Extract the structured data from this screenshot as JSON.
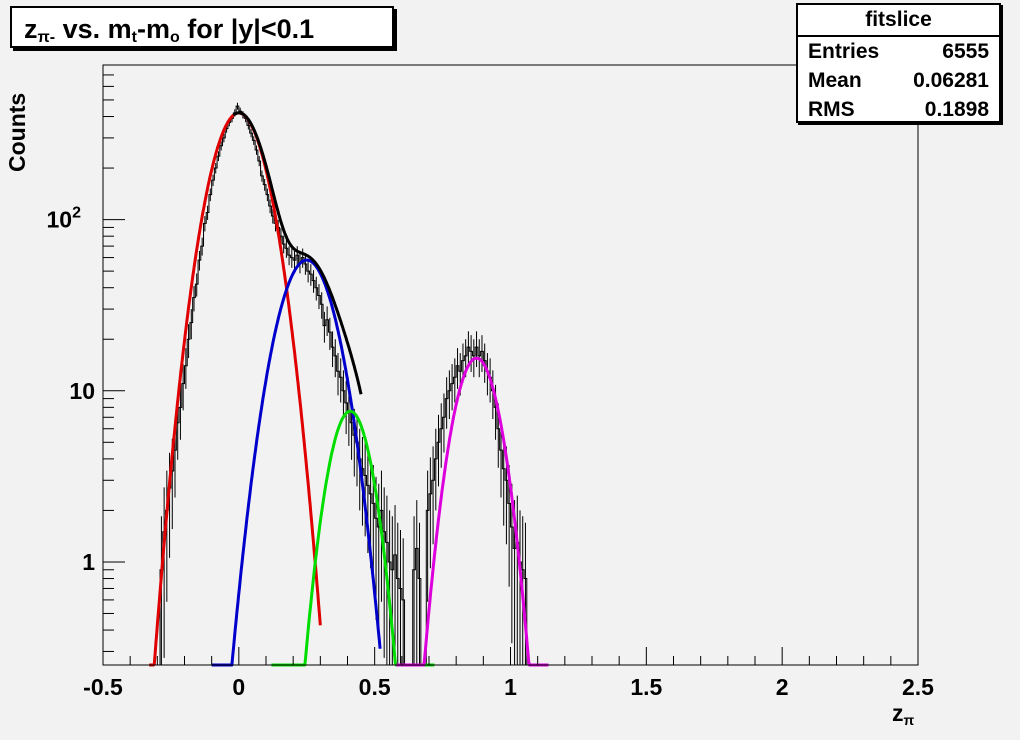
{
  "title": {
    "main": "z",
    "sub": "π-",
    "rest": " vs. m",
    "sub2": "t",
    "rest2": "-m",
    "sub3": "o",
    "rest3": " for |y|<0.1"
  },
  "stats": {
    "title": "fitslice",
    "rows": [
      {
        "label": "Entries",
        "value": "6555"
      },
      {
        "label": "Mean",
        "value": "0.06281"
      },
      {
        "label": "RMS",
        "value": "0.1898"
      }
    ]
  },
  "chart_data": {
    "type": "line",
    "ylabel": "Counts",
    "xlabel_main": "z",
    "xlabel_sub": "π",
    "xlim": [
      -0.5,
      2.5
    ],
    "ylim": [
      0.25,
      800
    ],
    "yscale": "log",
    "x_ticks": [
      "-0.5",
      "0",
      "0.5",
      "1",
      "1.5",
      "2",
      "2.5"
    ],
    "x_tick_values": [
      -0.5,
      0,
      0.5,
      1,
      1.5,
      2,
      2.5
    ],
    "y_ticks": [
      {
        "value": 1,
        "label": "1"
      },
      {
        "value": 10,
        "label": "10"
      },
      {
        "value": 100,
        "label": "10",
        "exp": "2"
      }
    ],
    "series": [
      {
        "kind": "gauss",
        "color": "#e00000",
        "amp": 420,
        "mean": 0.0,
        "sigma": 0.0808,
        "range": [
          -0.33,
          0.3
        ]
      },
      {
        "kind": "gauss",
        "color": "#0000cc",
        "amp": 58,
        "mean": 0.25,
        "sigma": 0.0835,
        "range": [
          -0.1,
          0.52
        ]
      },
      {
        "kind": "gauss",
        "color": "#00dd00",
        "amp": 7.6,
        "mean": 0.41,
        "sigma": 0.0638,
        "range": [
          0.12,
          0.72
        ]
      },
      {
        "kind": "gauss",
        "color": "#dd00dd",
        "amp": 15.5,
        "mean": 0.875,
        "sigma": 0.0672,
        "range": [
          0.58,
          1.14
        ]
      },
      {
        "kind": "sum",
        "color": "#000000",
        "range": [
          -0.02,
          0.45
        ]
      }
    ],
    "histogram": {
      "color": "#000000",
      "bin_width": 0.01,
      "bins": [
        {
          "x": -0.285,
          "y": 0.9
        },
        {
          "x": -0.275,
          "y": 1.5
        },
        {
          "x": -0.265,
          "y": 2.0
        },
        {
          "x": -0.255,
          "y": 2.7
        },
        {
          "x": -0.245,
          "y": 3.4
        },
        {
          "x": -0.235,
          "y": 4.5
        },
        {
          "x": -0.225,
          "y": 6.5
        },
        {
          "x": -0.215,
          "y": 8.0
        },
        {
          "x": -0.205,
          "y": 11
        },
        {
          "x": -0.195,
          "y": 14
        },
        {
          "x": -0.185,
          "y": 20
        },
        {
          "x": -0.175,
          "y": 25
        },
        {
          "x": -0.165,
          "y": 35
        },
        {
          "x": -0.155,
          "y": 42
        },
        {
          "x": -0.145,
          "y": 58
        },
        {
          "x": -0.135,
          "y": 70
        },
        {
          "x": -0.125,
          "y": 95
        },
        {
          "x": -0.115,
          "y": 110
        },
        {
          "x": -0.105,
          "y": 140
        },
        {
          "x": -0.095,
          "y": 170
        },
        {
          "x": -0.085,
          "y": 200
        },
        {
          "x": -0.075,
          "y": 235
        },
        {
          "x": -0.065,
          "y": 270
        },
        {
          "x": -0.055,
          "y": 300
        },
        {
          "x": -0.045,
          "y": 340
        },
        {
          "x": -0.035,
          "y": 370
        },
        {
          "x": -0.025,
          "y": 390
        },
        {
          "x": -0.015,
          "y": 420
        },
        {
          "x": -0.005,
          "y": 460
        },
        {
          "x": 0.005,
          "y": 430
        },
        {
          "x": 0.015,
          "y": 410
        },
        {
          "x": 0.025,
          "y": 390
        },
        {
          "x": 0.035,
          "y": 355
        },
        {
          "x": 0.045,
          "y": 320
        },
        {
          "x": 0.055,
          "y": 290
        },
        {
          "x": 0.065,
          "y": 255
        },
        {
          "x": 0.075,
          "y": 220
        },
        {
          "x": 0.085,
          "y": 180
        },
        {
          "x": 0.095,
          "y": 160
        },
        {
          "x": 0.105,
          "y": 140
        },
        {
          "x": 0.115,
          "y": 120
        },
        {
          "x": 0.125,
          "y": 105
        },
        {
          "x": 0.135,
          "y": 95
        },
        {
          "x": 0.145,
          "y": 90
        },
        {
          "x": 0.155,
          "y": 80
        },
        {
          "x": 0.165,
          "y": 72
        },
        {
          "x": 0.175,
          "y": 68
        },
        {
          "x": 0.185,
          "y": 62
        },
        {
          "x": 0.195,
          "y": 60
        },
        {
          "x": 0.205,
          "y": 58
        },
        {
          "x": 0.215,
          "y": 62
        },
        {
          "x": 0.225,
          "y": 56
        },
        {
          "x": 0.235,
          "y": 60
        },
        {
          "x": 0.245,
          "y": 55
        },
        {
          "x": 0.255,
          "y": 50
        },
        {
          "x": 0.265,
          "y": 48
        },
        {
          "x": 0.275,
          "y": 44
        },
        {
          "x": 0.285,
          "y": 40
        },
        {
          "x": 0.295,
          "y": 36
        },
        {
          "x": 0.305,
          "y": 32
        },
        {
          "x": 0.315,
          "y": 24
        },
        {
          "x": 0.325,
          "y": 26
        },
        {
          "x": 0.335,
          "y": 22
        },
        {
          "x": 0.345,
          "y": 18
        },
        {
          "x": 0.355,
          "y": 16
        },
        {
          "x": 0.365,
          "y": 13
        },
        {
          "x": 0.375,
          "y": 12
        },
        {
          "x": 0.385,
          "y": 10
        },
        {
          "x": 0.395,
          "y": 8.5
        },
        {
          "x": 0.405,
          "y": 7.5
        },
        {
          "x": 0.415,
          "y": 6.5
        },
        {
          "x": 0.425,
          "y": 5.5
        },
        {
          "x": 0.435,
          "y": 5.0
        },
        {
          "x": 0.445,
          "y": 4.0
        },
        {
          "x": 0.455,
          "y": 3.5
        },
        {
          "x": 0.465,
          "y": 3.2
        },
        {
          "x": 0.475,
          "y": 2.8
        },
        {
          "x": 0.485,
          "y": 2.5
        },
        {
          "x": 0.495,
          "y": 2.2
        },
        {
          "x": 0.505,
          "y": 1.8
        },
        {
          "x": 0.515,
          "y": 1.6
        },
        {
          "x": 0.525,
          "y": 2.0
        },
        {
          "x": 0.535,
          "y": 1.5
        },
        {
          "x": 0.545,
          "y": 1.3
        },
        {
          "x": 0.555,
          "y": 1.0
        },
        {
          "x": 0.565,
          "y": 0.9
        },
        {
          "x": 0.575,
          "y": 1.1
        },
        {
          "x": 0.585,
          "y": 0.8
        },
        {
          "x": 0.595,
          "y": 0.7
        },
        {
          "x": 0.605,
          "y": 0.6
        },
        {
          "x": 0.645,
          "y": 0.9
        },
        {
          "x": 0.655,
          "y": 1.2
        },
        {
          "x": 0.665,
          "y": 0.8
        },
        {
          "x": 0.695,
          "y": 2.0
        },
        {
          "x": 0.705,
          "y": 2.5
        },
        {
          "x": 0.715,
          "y": 3.0
        },
        {
          "x": 0.725,
          "y": 4.0
        },
        {
          "x": 0.735,
          "y": 5.0
        },
        {
          "x": 0.745,
          "y": 6.0
        },
        {
          "x": 0.755,
          "y": 7.0
        },
        {
          "x": 0.765,
          "y": 9.0
        },
        {
          "x": 0.775,
          "y": 10
        },
        {
          "x": 0.785,
          "y": 11
        },
        {
          "x": 0.795,
          "y": 12
        },
        {
          "x": 0.805,
          "y": 14
        },
        {
          "x": 0.815,
          "y": 13
        },
        {
          "x": 0.825,
          "y": 15
        },
        {
          "x": 0.835,
          "y": 16
        },
        {
          "x": 0.845,
          "y": 18
        },
        {
          "x": 0.855,
          "y": 17
        },
        {
          "x": 0.865,
          "y": 16
        },
        {
          "x": 0.875,
          "y": 18
        },
        {
          "x": 0.885,
          "y": 16
        },
        {
          "x": 0.895,
          "y": 17
        },
        {
          "x": 0.905,
          "y": 15
        },
        {
          "x": 0.915,
          "y": 13
        },
        {
          "x": 0.925,
          "y": 12
        },
        {
          "x": 0.935,
          "y": 10
        },
        {
          "x": 0.945,
          "y": 8.0
        },
        {
          "x": 0.955,
          "y": 6.0
        },
        {
          "x": 0.965,
          "y": 4.5
        },
        {
          "x": 0.975,
          "y": 3.5
        },
        {
          "x": 0.985,
          "y": 3.0
        },
        {
          "x": 0.995,
          "y": 2.2
        },
        {
          "x": 1.005,
          "y": 1.6
        },
        {
          "x": 1.015,
          "y": 1.2
        },
        {
          "x": 1.025,
          "y": 1.3
        },
        {
          "x": 1.035,
          "y": 1.0
        },
        {
          "x": 1.045,
          "y": 0.9
        },
        {
          "x": 1.055,
          "y": 0.8
        }
      ]
    },
    "grid": false,
    "legend": "stats box top-right"
  }
}
